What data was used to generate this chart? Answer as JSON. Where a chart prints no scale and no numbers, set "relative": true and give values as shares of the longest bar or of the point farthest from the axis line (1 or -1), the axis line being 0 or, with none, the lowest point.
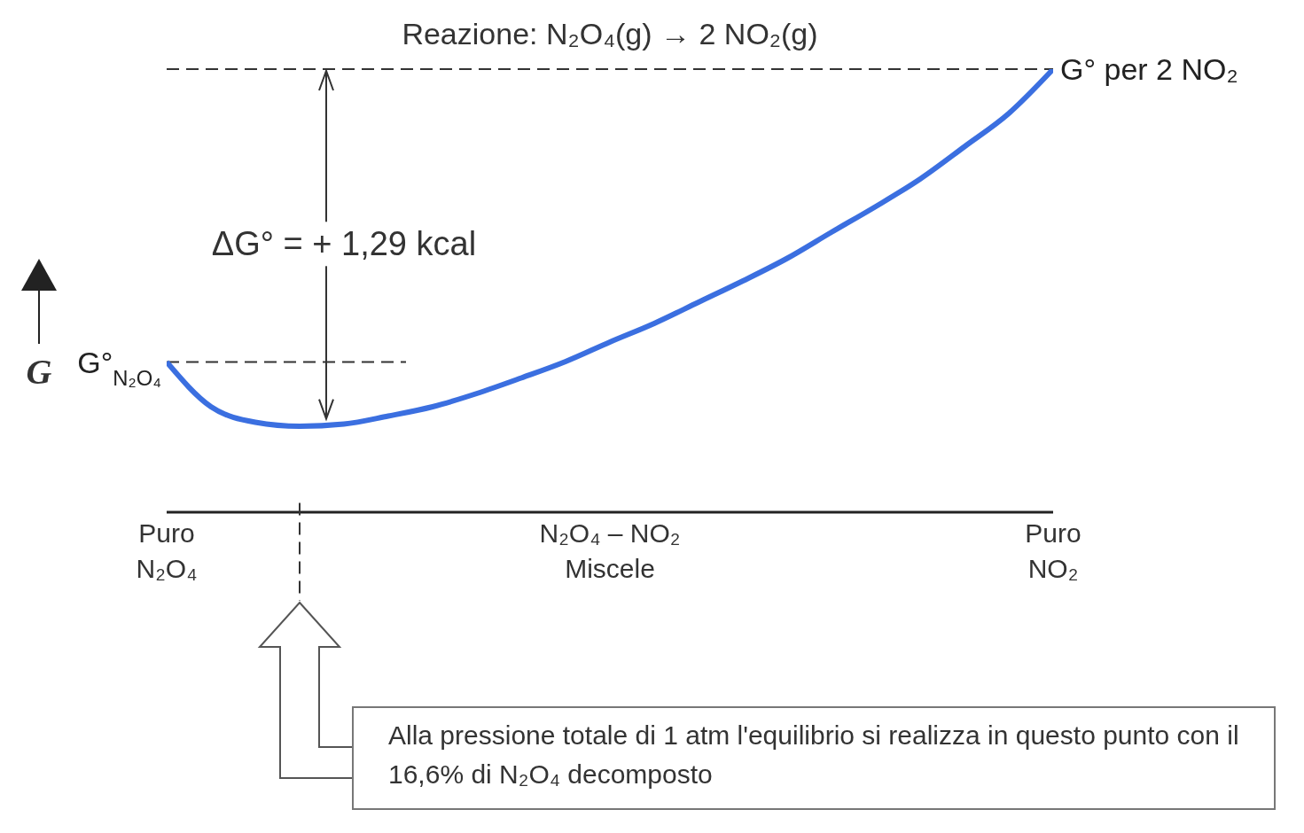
{
  "chart_data": {
    "type": "line",
    "title": "Reazione: N₂O₄(g) → 2 NO₂(g)",
    "ylabel": "G",
    "relative": true,
    "categories": [
      "Puro\nN₂O₄",
      null,
      null,
      null,
      null,
      null,
      null,
      null,
      null,
      null,
      "N₂O₄ – NO₂\nMiscele",
      null,
      null,
      null,
      null,
      null,
      null,
      null,
      null,
      null,
      "Puro\nNO₂"
    ],
    "series": [
      {
        "color": "#3b6fe0",
        "values": [
          0.339,
          0.238,
          0.203,
          0.194,
          0.199,
          0.217,
          0.238,
          0.268,
          0.303,
          0.34,
          0.384,
          0.426,
          0.474,
          0.522,
          0.573,
          0.632,
          0.69,
          0.752,
          0.825,
          0.9,
          1
        ]
      }
    ],
    "ref_lines": [
      {
        "axis": "y",
        "value": 1,
        "label": "G° per 2 NO₂",
        "line_style": "dashed"
      },
      {
        "axis": "y",
        "value": 0.339,
        "label": "G°$_{N₂O₄}$",
        "line_style": "dashed"
      }
    ],
    "annotations": [
      "ΔG° = + 1,29 kcal",
      "Alla pressione totale di 1 atm l'equilibrio si realizza in questo punto con il 16,6% di N₂O₄ decomposto"
    ],
    "grid": false,
    "legend": false,
    "marker": "none",
    "line_style": "solid"
  }
}
